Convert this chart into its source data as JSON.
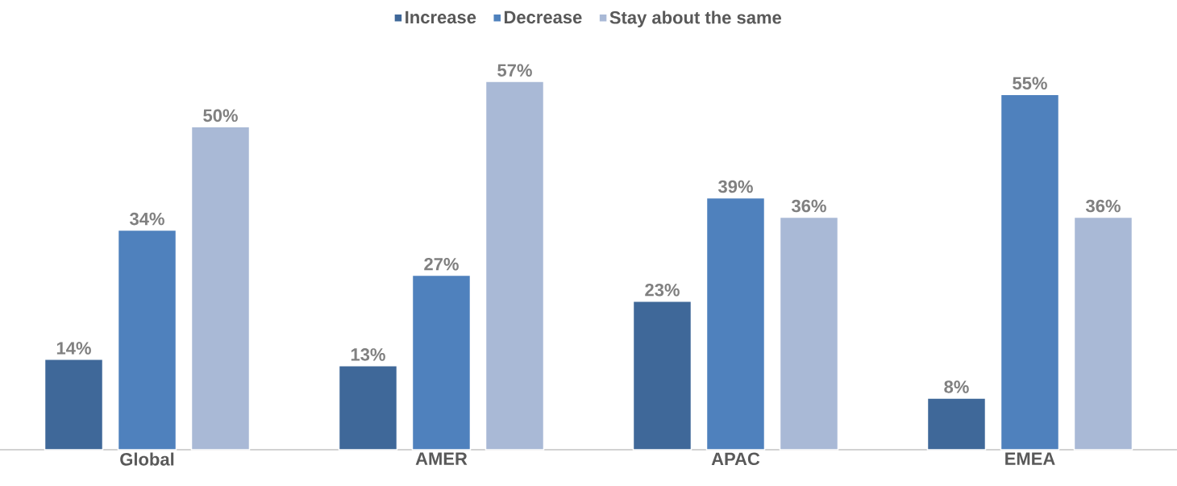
{
  "chart_data": {
    "type": "bar",
    "categories": [
      "Global",
      "AMER",
      "APAC",
      "EMEA"
    ],
    "series": [
      {
        "name": "Increase",
        "color": "#3f6899",
        "values": [
          14,
          13,
          23,
          8
        ],
        "value_labels": [
          "14%",
          "13%",
          "23%",
          "8%"
        ]
      },
      {
        "name": "Decrease",
        "color": "#4f81bd",
        "values": [
          34,
          27,
          39,
          55
        ],
        "value_labels": [
          "34%",
          "27%",
          "39%",
          "55%"
        ]
      },
      {
        "name": "Stay about the same",
        "color": "#a9b9d6",
        "values": [
          50,
          57,
          36,
          36
        ],
        "value_labels": [
          "50%",
          "57%",
          "36%",
          "36%"
        ]
      }
    ],
    "legend": "top"
  }
}
